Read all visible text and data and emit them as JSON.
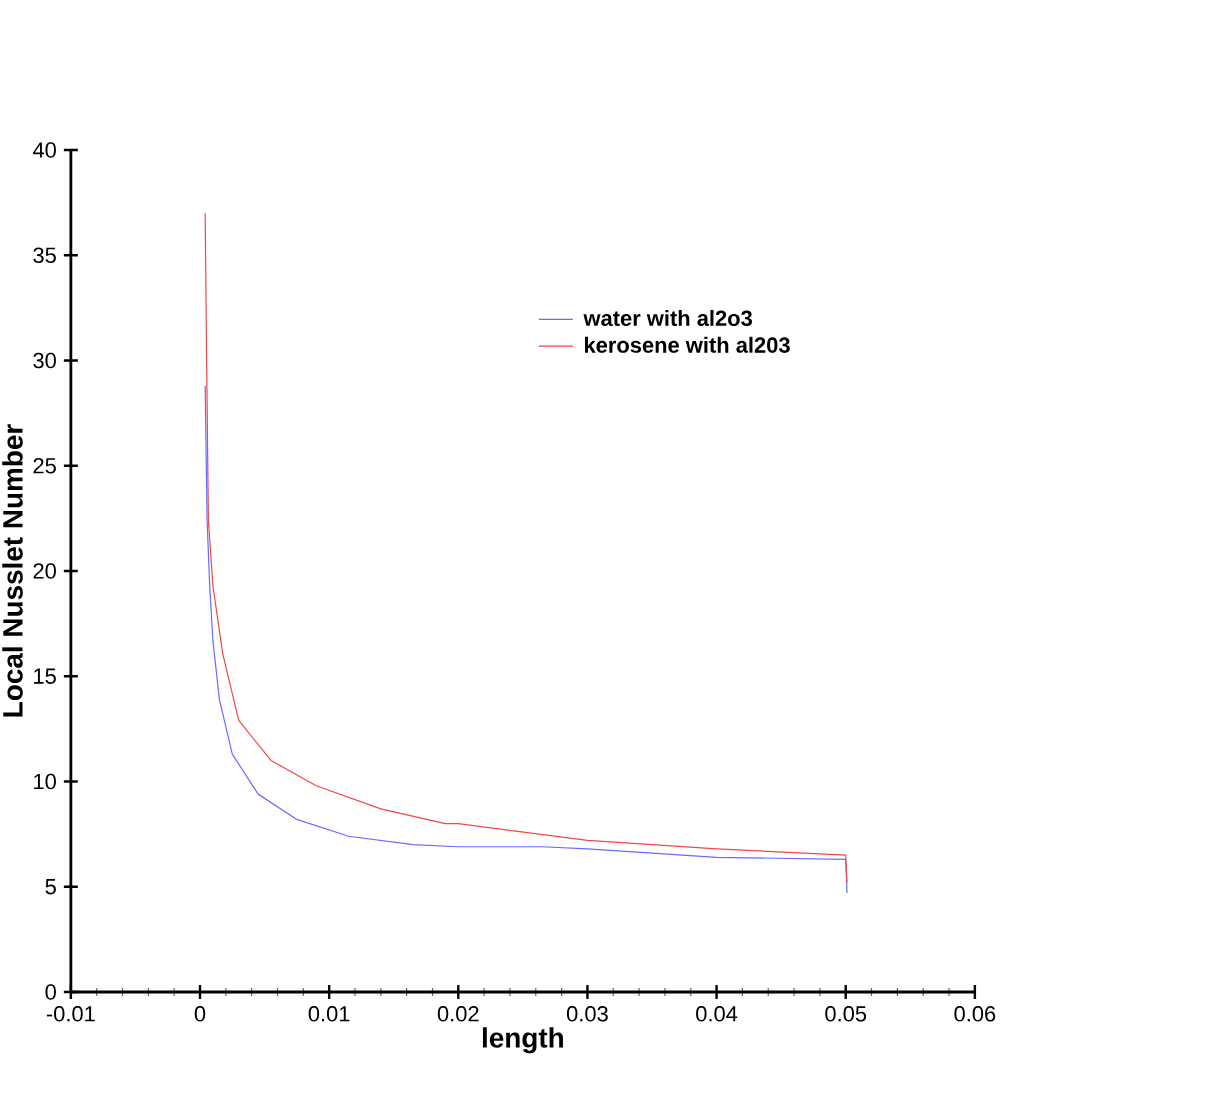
{
  "chart_data": {
    "type": "line",
    "xlabel": "length",
    "ylabel": "Local Nusslet Number",
    "xlim": [
      -0.01,
      0.06
    ],
    "xticks": [
      -0.01,
      0,
      0.01,
      0.02,
      0.03,
      0.04,
      0.05,
      0.06
    ],
    "ylim": [
      0,
      40
    ],
    "yticks": [
      0,
      5,
      10,
      15,
      20,
      25,
      30,
      35,
      40
    ],
    "grid": false,
    "legend": "top right",
    "marker": "none",
    "line_style": "solid",
    "series": [
      {
        "name": "water with al2o3",
        "color": "#6a6aff",
        "x": [
          0.0004,
          0.00055,
          0.00075,
          0.001,
          0.0015,
          0.0025,
          0.0045,
          0.0075,
          0.0115,
          0.0165,
          0.02,
          0.0265,
          0.03,
          0.04,
          0.05,
          0.0501
        ],
        "values": [
          28.8,
          22.4,
          19.3,
          16.7,
          13.9,
          11.3,
          9.4,
          8.2,
          7.4,
          7.0,
          6.9,
          6.9,
          6.8,
          6.4,
          6.3,
          4.7
        ]
      },
      {
        "name": "kerosene with al203",
        "color": "#ee4848",
        "x": [
          0.0004,
          0.0005,
          0.00065,
          0.001,
          0.00175,
          0.003,
          0.0055,
          0.009,
          0.014,
          0.019,
          0.02,
          0.03,
          0.04,
          0.05,
          0.0501
        ],
        "values": [
          37.0,
          30.7,
          22.4,
          19.3,
          16.1,
          12.9,
          11.0,
          9.8,
          8.7,
          8.0,
          8.0,
          7.2,
          6.8,
          6.5,
          5.2
        ]
      }
    ]
  }
}
